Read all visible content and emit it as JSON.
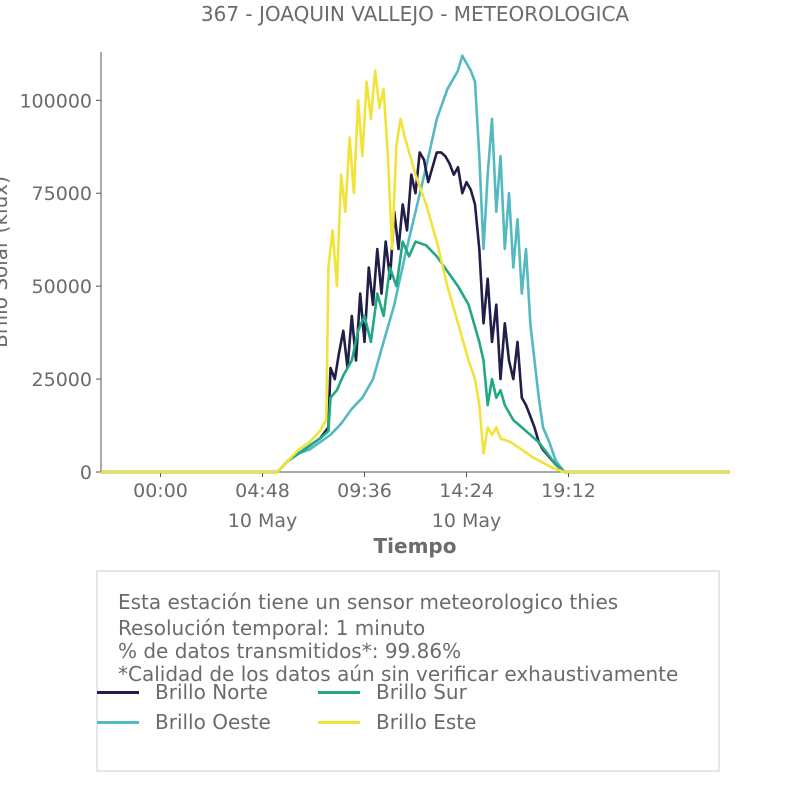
{
  "chart_data": {
    "type": "line",
    "title": "367 - JOAQUIN VALLEJO - METEOROLOGICA",
    "xlabel": "Tiempo",
    "ylabel": "Brillo Solar (klux)",
    "ylim": [
      0,
      113000
    ],
    "yticks": [
      0,
      25000,
      50000,
      75000,
      100000
    ],
    "yticklabels": [
      "0",
      "25000",
      "50000",
      "75000",
      "100000"
    ],
    "xlim_hours": [
      -2.8,
      26.8
    ],
    "xticks_hours": [
      0,
      4.8,
      9.6,
      14.4,
      19.2
    ],
    "xticklabels": [
      "00:00",
      "04:48",
      "09:36",
      "14:24",
      "19:12"
    ],
    "xticksublabels": [
      "",
      "10 May",
      "",
      "10 May",
      ""
    ],
    "grid": false,
    "series": [
      {
        "name": "Brillo Norte",
        "color": "#1f1f4a",
        "x": [
          -2.8,
          5.5,
          6.0,
          6.5,
          7.0,
          7.5,
          7.9,
          8.0,
          8.2,
          8.4,
          8.6,
          8.8,
          9.0,
          9.2,
          9.4,
          9.6,
          9.8,
          10.0,
          10.2,
          10.4,
          10.6,
          10.8,
          11.0,
          11.2,
          11.4,
          11.6,
          11.8,
          12.0,
          12.2,
          12.4,
          12.6,
          12.8,
          13.0,
          13.2,
          13.4,
          13.6,
          13.8,
          14.0,
          14.2,
          14.4,
          14.6,
          14.8,
          15.0,
          15.2,
          15.4,
          15.6,
          15.8,
          16.0,
          16.2,
          16.4,
          16.6,
          16.8,
          17.0,
          17.2,
          17.4,
          17.6,
          17.8,
          18.0,
          18.3,
          18.6,
          19.0,
          26.8
        ],
        "y": [
          0,
          0,
          3000,
          5000,
          7000,
          9000,
          12000,
          28000,
          25000,
          32000,
          38000,
          28000,
          42000,
          30000,
          48000,
          35000,
          55000,
          45000,
          60000,
          48000,
          62000,
          52000,
          70000,
          60000,
          72000,
          65000,
          80000,
          75000,
          86000,
          84000,
          78000,
          82000,
          86000,
          86000,
          85000,
          83000,
          80000,
          82000,
          75000,
          78000,
          76000,
          72000,
          60000,
          40000,
          52000,
          35000,
          45000,
          25000,
          40000,
          30000,
          25000,
          35000,
          20000,
          18000,
          15000,
          12000,
          8000,
          6000,
          4000,
          2000,
          0,
          0
        ]
      },
      {
        "name": "Brillo Oeste",
        "color": "#55b9c2",
        "x": [
          -2.8,
          5.5,
          6.0,
          6.5,
          7.0,
          7.5,
          8.0,
          8.5,
          9.0,
          9.5,
          10.0,
          10.5,
          11.0,
          11.5,
          12.0,
          12.5,
          13.0,
          13.5,
          14.0,
          14.2,
          14.4,
          14.6,
          14.8,
          15.0,
          15.2,
          15.4,
          15.6,
          15.8,
          16.0,
          16.2,
          16.4,
          16.6,
          16.8,
          17.0,
          17.2,
          17.4,
          17.6,
          17.8,
          18.0,
          18.3,
          18.6,
          19.0,
          26.8
        ],
        "y": [
          0,
          0,
          3000,
          5000,
          6000,
          8000,
          10000,
          13000,
          17000,
          20000,
          25000,
          35000,
          45000,
          58000,
          70000,
          82000,
          95000,
          103000,
          108000,
          112000,
          110000,
          108000,
          105000,
          85000,
          60000,
          80000,
          95000,
          70000,
          85000,
          60000,
          75000,
          55000,
          68000,
          48000,
          60000,
          40000,
          30000,
          20000,
          12000,
          8000,
          3000,
          0,
          0
        ]
      },
      {
        "name": "Brillo Sur",
        "color": "#22a884",
        "x": [
          -2.8,
          5.5,
          6.0,
          6.5,
          7.0,
          7.5,
          7.9,
          8.0,
          8.3,
          8.6,
          9.0,
          9.3,
          9.6,
          9.9,
          10.2,
          10.5,
          10.8,
          11.1,
          11.4,
          11.7,
          12.0,
          12.5,
          13.0,
          13.5,
          14.0,
          14.5,
          15.0,
          15.2,
          15.4,
          15.6,
          15.8,
          16.0,
          16.2,
          16.4,
          16.6,
          17.0,
          17.4,
          17.8,
          18.2,
          18.6,
          19.0,
          26.8
        ],
        "y": [
          0,
          0,
          3000,
          5000,
          7000,
          9000,
          11000,
          20000,
          22000,
          26000,
          30000,
          38000,
          42000,
          35000,
          48000,
          42000,
          55000,
          50000,
          62000,
          58000,
          62000,
          61000,
          58000,
          54000,
          50000,
          45000,
          35000,
          30000,
          18000,
          25000,
          20000,
          22000,
          18000,
          16000,
          14000,
          12000,
          10000,
          8000,
          5000,
          2000,
          0,
          0
        ]
      },
      {
        "name": "Brillo Este",
        "color": "#f2e33b",
        "x": [
          -2.8,
          5.5,
          6.0,
          6.5,
          7.0,
          7.5,
          7.8,
          7.9,
          8.1,
          8.3,
          8.5,
          8.7,
          8.9,
          9.1,
          9.3,
          9.5,
          9.7,
          9.9,
          10.1,
          10.3,
          10.5,
          10.7,
          10.9,
          11.1,
          11.3,
          11.5,
          12.0,
          12.5,
          13.0,
          13.5,
          14.0,
          14.5,
          14.8,
          15.0,
          15.2,
          15.4,
          15.6,
          15.8,
          16.0,
          16.5,
          17.0,
          17.5,
          18.0,
          18.5,
          19.0,
          26.8
        ],
        "y": [
          0,
          0,
          3000,
          6000,
          8000,
          11000,
          14000,
          55000,
          65000,
          50000,
          80000,
          70000,
          90000,
          75000,
          100000,
          85000,
          105000,
          95000,
          108000,
          98000,
          103000,
          85000,
          60000,
          88000,
          95000,
          90000,
          80000,
          72000,
          62000,
          50000,
          40000,
          30000,
          25000,
          18000,
          5000,
          12000,
          10000,
          12000,
          9000,
          8000,
          6000,
          4000,
          2500,
          1000,
          0,
          0
        ]
      }
    ]
  },
  "info": {
    "line1": "Esta estación tiene un sensor meteorologico thies",
    "line2": "Resolución temporal: 1 minuto",
    "line3": "% de datos transmitidos*: 99.86%",
    "line4": "*Calidad de los datos aún sin verificar exhaustivamente"
  }
}
